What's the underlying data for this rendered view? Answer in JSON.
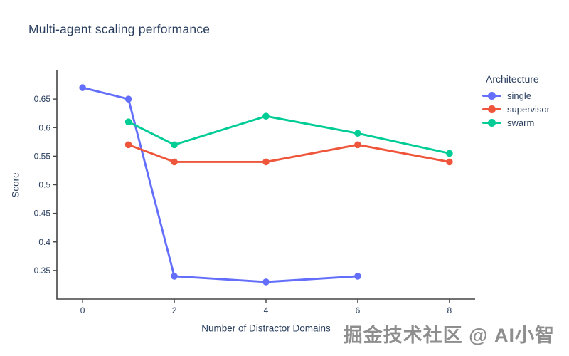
{
  "watermark": "掘金技术社区 @ AI小智",
  "chart_data": {
    "type": "line",
    "title": "Multi-agent scaling performance",
    "xlabel": "Number of Distractor Domains",
    "ylabel": "Score",
    "legend_title": "Architecture",
    "legend_position": "right-top",
    "grid": false,
    "background": "#ffffff",
    "axis_color": "#444444",
    "text_color": "#2a3f5f",
    "xlim": [
      -0.56,
      8.56
    ],
    "ylim": [
      0.3,
      0.7
    ],
    "xticks": {
      "values": [
        0,
        2,
        4,
        6,
        8
      ],
      "labels": [
        "0",
        "2",
        "4",
        "6",
        "8"
      ]
    },
    "yticks": {
      "values": [
        0.35,
        0.4,
        0.45,
        0.5,
        0.55,
        0.6,
        0.65
      ],
      "labels": [
        "0.35",
        "0.4",
        "0.45",
        "0.5",
        "0.55",
        "0.6",
        "0.65"
      ]
    },
    "series": [
      {
        "name": "single",
        "color": "#636EFA",
        "x": [
          0,
          1,
          2,
          4,
          6
        ],
        "y": [
          0.67,
          0.65,
          0.34,
          0.33,
          0.34
        ]
      },
      {
        "name": "supervisor",
        "color": "#EF553B",
        "x": [
          1,
          2,
          4,
          6,
          8
        ],
        "y": [
          0.57,
          0.54,
          0.54,
          0.57,
          0.54
        ]
      },
      {
        "name": "swarm",
        "color": "#00CC96",
        "x": [
          1,
          2,
          4,
          6,
          8
        ],
        "y": [
          0.61,
          0.57,
          0.62,
          0.59,
          0.555
        ]
      }
    ]
  }
}
